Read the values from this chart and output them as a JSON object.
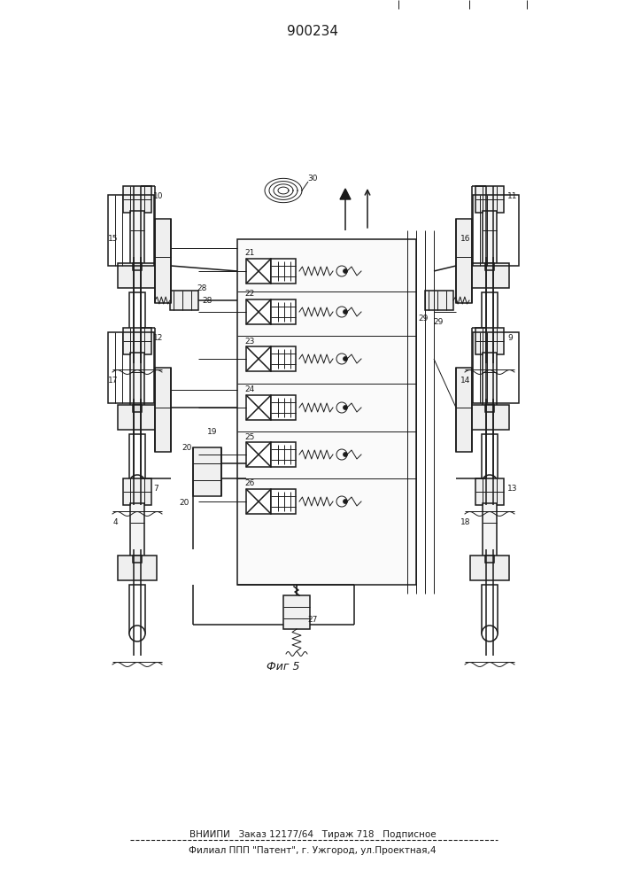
{
  "title": "900234",
  "fig5_label": "Фиг 5",
  "bottom_line1": "ВНИИПИ   Заказ 12177/64   Тираж 718   Подписное",
  "bottom_line2": "Филиал ППП \"Патент\", г. Ужгород, ул.Проектная,4",
  "bg_color": "#ffffff",
  "lc": "#1a1a1a"
}
